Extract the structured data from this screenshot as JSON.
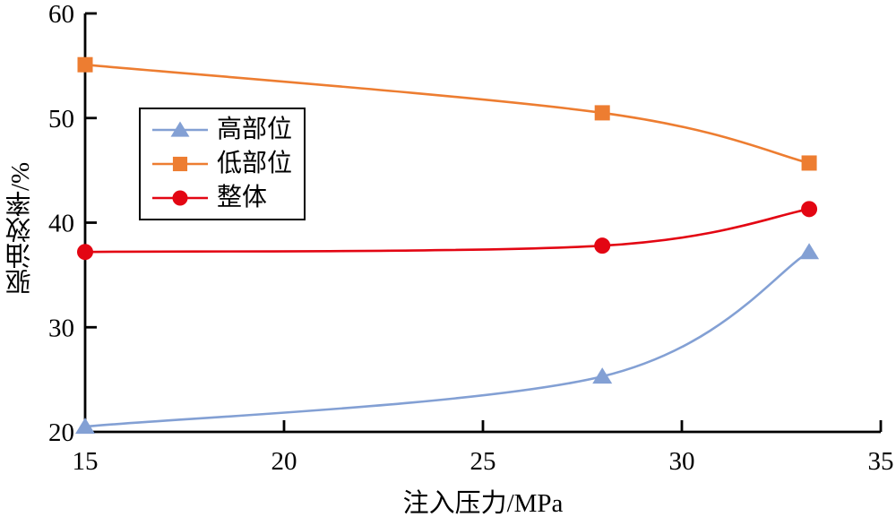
{
  "figure": {
    "background": "#ffffff",
    "axis_color": "#000000"
  },
  "chart_data": {
    "type": "line",
    "title": "",
    "xlabel": "注入压力/MPa",
    "ylabel": "驱油效率/%",
    "xlim": [
      15,
      35
    ],
    "ylim": [
      20,
      60
    ],
    "x_ticks": [
      "15",
      "20",
      "25",
      "30",
      "35"
    ],
    "x_tick_values": [
      15,
      20,
      25,
      30,
      35
    ],
    "y_ticks": [
      "20",
      "30",
      "40",
      "50",
      "60"
    ],
    "y_tick_values": [
      20,
      30,
      40,
      50,
      60
    ],
    "grid": false,
    "legend_position": "upper-left-inside",
    "x": [
      15,
      28,
      33.2
    ],
    "series": [
      {
        "name": "高部位",
        "marker": "triangle",
        "color": "#83a0d4",
        "values": [
          20.5,
          25.3,
          37.2
        ]
      },
      {
        "name": "低部位",
        "marker": "square",
        "color": "#ed7d31",
        "values": [
          55.1,
          50.5,
          45.7
        ]
      },
      {
        "name": "整体",
        "marker": "circle",
        "color": "#e30613",
        "values": [
          37.2,
          37.8,
          41.3
        ]
      }
    ]
  }
}
